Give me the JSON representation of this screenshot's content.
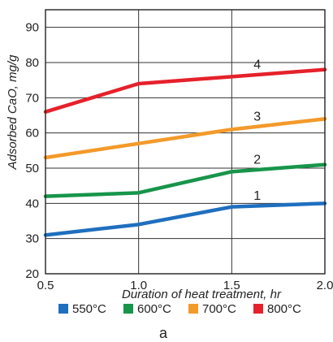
{
  "chart_data": {
    "type": "line",
    "x": [
      0.5,
      1.0,
      1.5,
      2.0
    ],
    "x_tick_labels": [
      "0.5",
      "1.0",
      "1.5",
      "2.0"
    ],
    "y_ticks": [
      20,
      30,
      40,
      50,
      60,
      70,
      80,
      90
    ],
    "xlim": [
      0.5,
      2.0
    ],
    "ylim": [
      20,
      95
    ],
    "xlabel": "Duration of heat treatment, hr",
    "ylabel": "Adsorbed CaO, mg/g",
    "grid": true,
    "legend_position": "bottom",
    "panel_label": "a",
    "series": [
      {
        "name": "550°C",
        "curve_label": "1",
        "color": "#1f6fbf",
        "values": [
          31,
          34,
          39,
          40
        ]
      },
      {
        "name": "600°C",
        "curve_label": "2",
        "color": "#17954a",
        "values": [
          42,
          43,
          49,
          51
        ]
      },
      {
        "name": "700°C",
        "curve_label": "3",
        "color": "#f39a2a",
        "values": [
          53,
          57,
          61,
          64
        ]
      },
      {
        "name": "800°C",
        "curve_label": "4",
        "color": "#e5212b",
        "values": [
          66,
          74,
          76,
          78
        ]
      }
    ]
  }
}
